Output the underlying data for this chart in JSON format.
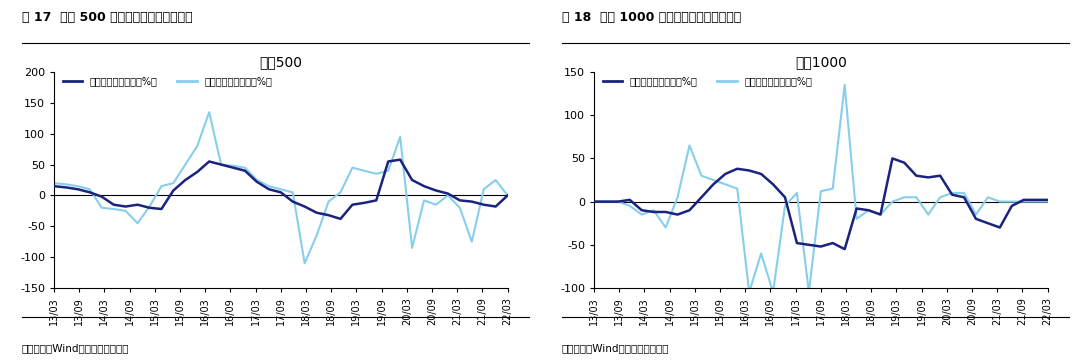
{
  "fig_title_left": "图 17  中证 500 盈利增速下滑但边际改善",
  "fig_title_right": "图 18  中证 1000 盈利增速下滑但边际改善",
  "chart_title_left": "中证500",
  "chart_title_right": "中证1000",
  "source_text": "资料来源：Wind，海通证券研究所",
  "legend_label1": "归母净利累计同比（%）",
  "legend_label2": "归母净利单季同比（%）",
  "color_dark": "#1a237e",
  "color_light": "#87ceeb",
  "background_color": "#ffffff",
  "x_labels": [
    "13/03",
    "13/09",
    "14/03",
    "14/09",
    "15/03",
    "15/09",
    "16/03",
    "16/09",
    "17/03",
    "17/09",
    "18/03",
    "18/09",
    "19/03",
    "19/09",
    "20/03",
    "20/09",
    "21/03",
    "21/09",
    "22/03"
  ],
  "left_ylim": [
    -150,
    200
  ],
  "right_ylim": [
    -100,
    150
  ],
  "left_yticks": [
    -150,
    -100,
    -50,
    0,
    50,
    100,
    150,
    200
  ],
  "right_yticks": [
    -100,
    -50,
    0,
    50,
    100,
    150
  ],
  "left_cum": [
    15,
    13,
    10,
    5,
    -2,
    -15,
    -18,
    -15,
    -20,
    -22,
    8,
    25,
    38,
    55,
    50,
    45,
    40,
    22,
    10,
    5,
    -10,
    -18,
    -28,
    -32,
    -38,
    -15,
    -12,
    -8,
    55,
    58,
    25,
    15,
    8,
    3,
    -8,
    -10,
    -15,
    -18,
    0
  ],
  "left_q": [
    20,
    18,
    15,
    10,
    -20,
    -22,
    -25,
    -45,
    -18,
    15,
    20,
    50,
    80,
    135,
    50,
    48,
    45,
    25,
    15,
    10,
    5,
    -110,
    -65,
    -10,
    5,
    45,
    40,
    35,
    40,
    95,
    -85,
    -8,
    -15,
    0,
    -20,
    -75,
    10,
    25,
    0
  ],
  "right_cum": [
    0,
    0,
    0,
    2,
    -10,
    -12,
    -12,
    -15,
    -10,
    5,
    20,
    32,
    38,
    36,
    32,
    20,
    5,
    -48,
    -50,
    -52,
    -48,
    -55,
    -8,
    -10,
    -15,
    50,
    45,
    30,
    28,
    30,
    8,
    5,
    -20,
    -25,
    -30,
    -5,
    2,
    2,
    2
  ],
  "right_q": [
    0,
    0,
    0,
    -5,
    -15,
    -10,
    -30,
    5,
    65,
    30,
    25,
    20,
    15,
    -105,
    -60,
    -105,
    -5,
    10,
    -105,
    12,
    15,
    135,
    -20,
    -10,
    -15,
    0,
    5,
    5,
    -15,
    5,
    10,
    10,
    -15,
    5,
    0,
    0,
    0,
    0,
    0
  ]
}
